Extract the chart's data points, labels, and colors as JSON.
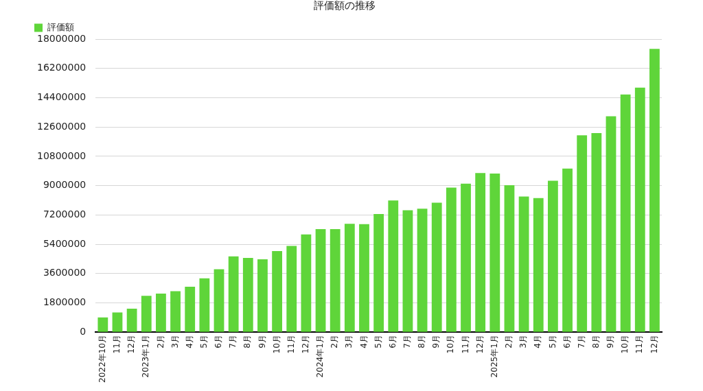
{
  "chart_data": {
    "type": "bar",
    "title": "評価額の推移",
    "categories": [
      "2022年10月",
      "11月",
      "12月",
      "2023年1月",
      "2月",
      "3月",
      "4月",
      "5月",
      "6月",
      "7月",
      "8月",
      "9月",
      "10月",
      "11月",
      "12月",
      "2024年1月",
      "2月",
      "3月",
      "4月",
      "5月",
      "6月",
      "7月",
      "8月",
      "9月",
      "10月",
      "11月",
      "12月",
      "2025年1月",
      "2月",
      "3月",
      "4月",
      "5月",
      "6月",
      "7月",
      "8月",
      "9月",
      "10月",
      "11月",
      "12月"
    ],
    "series": [
      {
        "name": "評価額",
        "color": "#5fd53a",
        "values": [
          900000,
          1210000,
          1440000,
          2230000,
          2370000,
          2510000,
          2790000,
          3300000,
          3860000,
          4650000,
          4560000,
          4470000,
          4980000,
          5300000,
          6000000,
          6330000,
          6330000,
          6650000,
          6630000,
          7260000,
          8090000,
          7490000,
          7580000,
          7950000,
          8880000,
          9120000,
          9770000,
          9740000,
          9020000,
          8330000,
          8230000,
          9300000,
          10050000,
          12090000,
          12230000,
          13260000,
          14600000,
          15020000,
          17400000
        ]
      }
    ],
    "ylim": [
      0,
      18000000
    ],
    "yticks": [
      0,
      1800000,
      3600000,
      5400000,
      7200000,
      9000000,
      10800000,
      12600000,
      14400000,
      16200000,
      18000000
    ],
    "grid": "y",
    "legend": "top left"
  }
}
